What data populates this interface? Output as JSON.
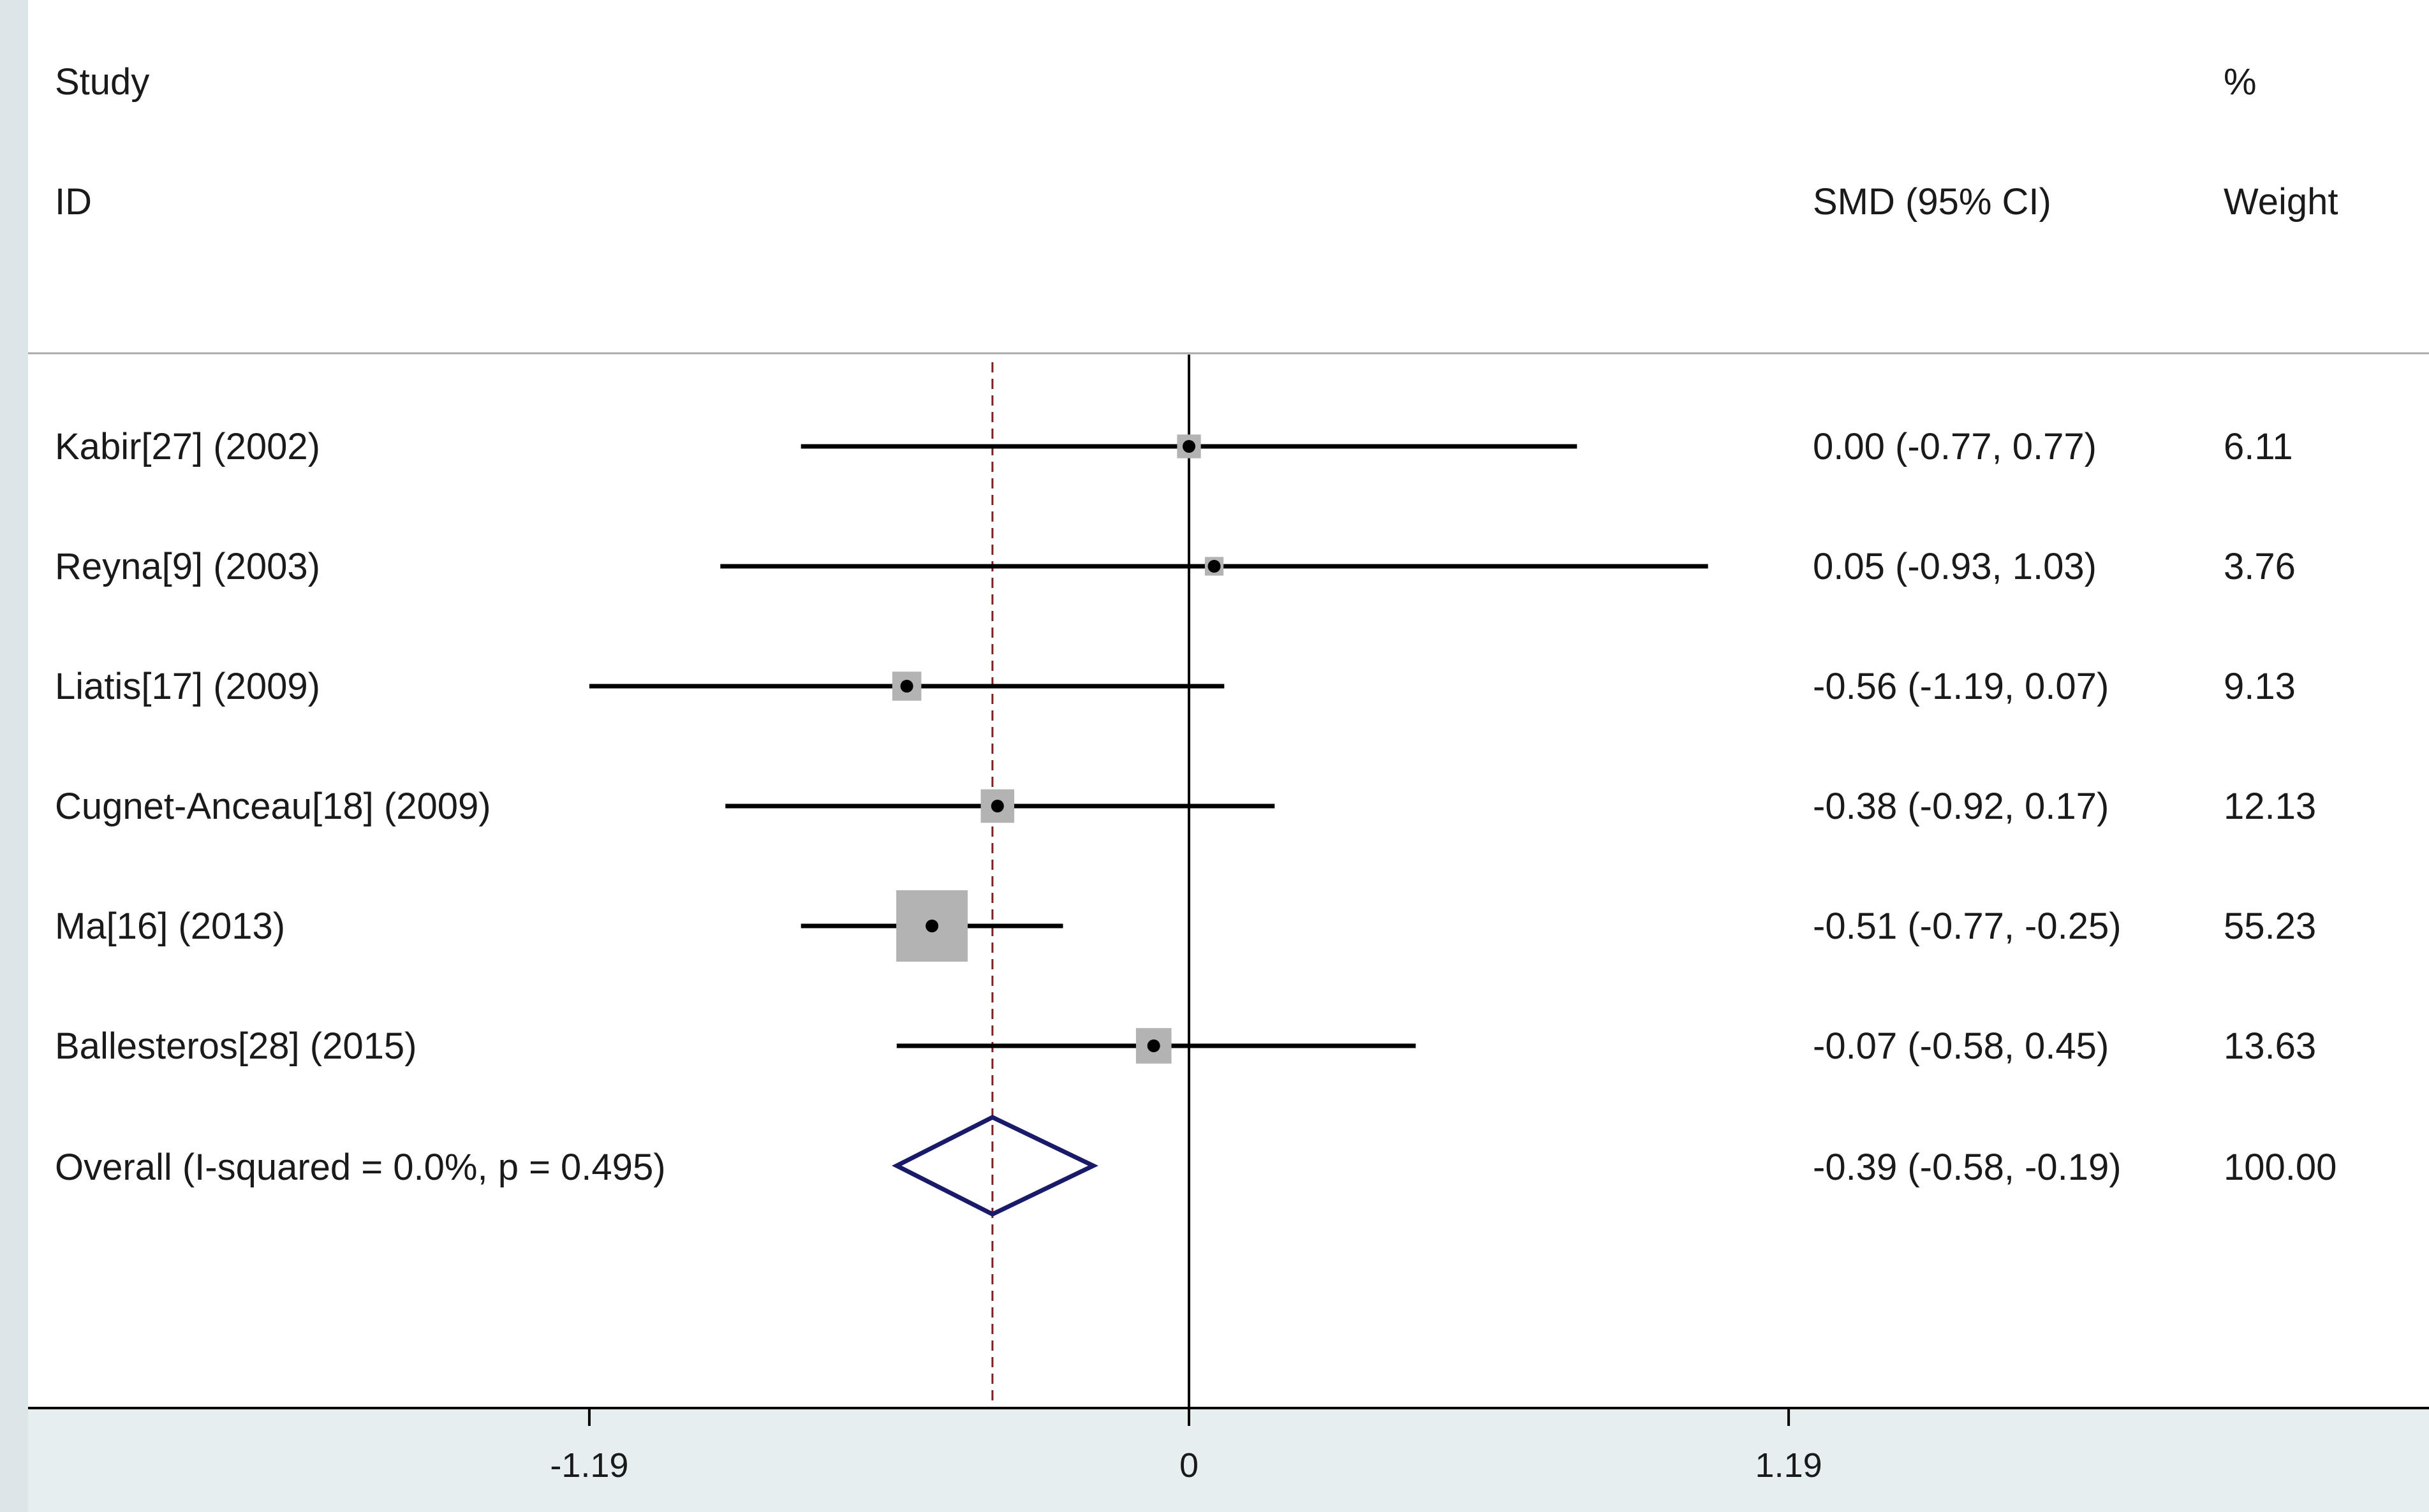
{
  "header": {
    "study_label": "Study",
    "id_label": "ID",
    "effect_label": "SMD (95% CI)",
    "percent_label": "%",
    "weight_label": "Weight"
  },
  "colors": {
    "background": "#ffffff",
    "axis_band": "#e6eef0",
    "left_border": "#dce6e8",
    "weight_box": "#b3b3b3",
    "reference_line": "#8b1a1a",
    "diamond": "#1a1a6b",
    "lines": "#000000",
    "header_rule": "#a8a8a8"
  },
  "chart_data": {
    "type": "forest",
    "measure": "SMD",
    "xlim": [
      -1.9,
      1.95
    ],
    "xticks": [
      -1.19,
      0,
      1.19
    ],
    "xtick_labels": [
      "-1.19",
      "0",
      "1.19"
    ],
    "null_line": 0,
    "studies": [
      {
        "label": "Kabir[27] (2002)",
        "est": 0.0,
        "lo": -0.77,
        "hi": 0.77,
        "ci_text": "0.00 (-0.77, 0.77)",
        "weight": 6.11,
        "weight_text": "6.11"
      },
      {
        "label": "Reyna[9] (2003)",
        "est": 0.05,
        "lo": -0.93,
        "hi": 1.03,
        "ci_text": "0.05 (-0.93, 1.03)",
        "weight": 3.76,
        "weight_text": "3.76"
      },
      {
        "label": "Liatis[17] (2009)",
        "est": -0.56,
        "lo": -1.19,
        "hi": 0.07,
        "ci_text": "-0.56 (-1.19, 0.07)",
        "weight": 9.13,
        "weight_text": "9.13"
      },
      {
        "label": "Cugnet-Anceau[18] (2009)",
        "est": -0.38,
        "lo": -0.92,
        "hi": 0.17,
        "ci_text": "-0.38 (-0.92, 0.17)",
        "weight": 12.13,
        "weight_text": "12.13"
      },
      {
        "label": "Ma[16] (2013)",
        "est": -0.51,
        "lo": -0.77,
        "hi": -0.25,
        "ci_text": "-0.51 (-0.77, -0.25)",
        "weight": 55.23,
        "weight_text": "55.23"
      },
      {
        "label": "Ballesteros[28] (2015)",
        "est": -0.07,
        "lo": -0.58,
        "hi": 0.45,
        "ci_text": "-0.07 (-0.58, 0.45)",
        "weight": 13.63,
        "weight_text": "13.63"
      }
    ],
    "overall": {
      "label": "Overall  (I-squared = 0.0%, p = 0.495)",
      "est": -0.39,
      "lo": -0.58,
      "hi": -0.19,
      "ci_text": "-0.39 (-0.58, -0.19)",
      "weight": 100.0,
      "weight_text": "100.00"
    }
  }
}
